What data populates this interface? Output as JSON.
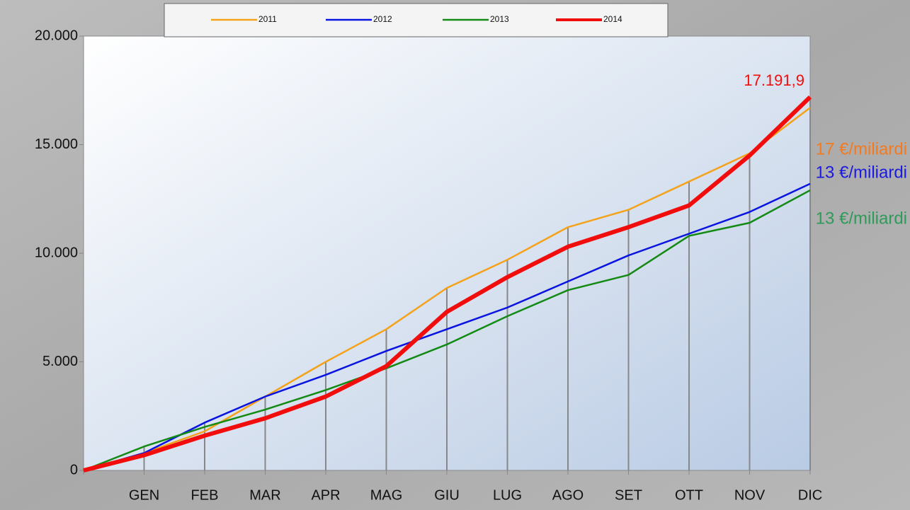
{
  "chart_data": {
    "type": "line",
    "categories": [
      null,
      "GEN",
      "FEB",
      "MAR",
      "APR",
      "MAG",
      "GIU",
      "LUG",
      "AGO",
      "SET",
      "OTT",
      "NOV",
      "DIC"
    ],
    "series": [
      {
        "name": "2011",
        "color": "#f5a21b",
        "values": [
          0,
          800,
          1800,
          3400,
          5000,
          6500,
          8400,
          9700,
          11200,
          12000,
          13300,
          14600,
          16700
        ]
      },
      {
        "name": "2012",
        "color": "#0a14e0",
        "values": [
          0,
          800,
          2200,
          3400,
          4400,
          5500,
          6500,
          7500,
          8700,
          9900,
          10900,
          11900,
          13200
        ]
      },
      {
        "name": "2013",
        "color": "#138a13",
        "values": [
          0,
          1100,
          2000,
          2800,
          3700,
          4700,
          5800,
          7100,
          8300,
          9000,
          10800,
          11400,
          12900
        ]
      },
      {
        "name": "2014",
        "color": "#f20d0d",
        "values": [
          0,
          700,
          1600,
          2400,
          3400,
          4800,
          7300,
          8900,
          10300,
          11200,
          12200,
          14500,
          17191.9
        ],
        "value_labels": [
          null,
          null,
          null,
          null,
          null,
          null,
          null,
          null,
          null,
          null,
          null,
          null,
          "17.191,9"
        ]
      }
    ],
    "annotations": [
      {
        "text": "17 €/miliardi",
        "color": "#f47a20"
      },
      {
        "text": "13 €/miliardi",
        "color": "#1a1ae0"
      },
      {
        "text": "13 €/miliardi",
        "color": "#2f9a5a"
      }
    ],
    "ylim": [
      0,
      20000
    ],
    "yticks": [
      0,
      {
        "value": 5000,
        "label": "5.000"
      },
      {
        "value": 10000,
        "label": "10.000"
      },
      {
        "value": 15000,
        "label": "15.000"
      },
      {
        "value": 20000,
        "label": "20.000"
      }
    ]
  }
}
